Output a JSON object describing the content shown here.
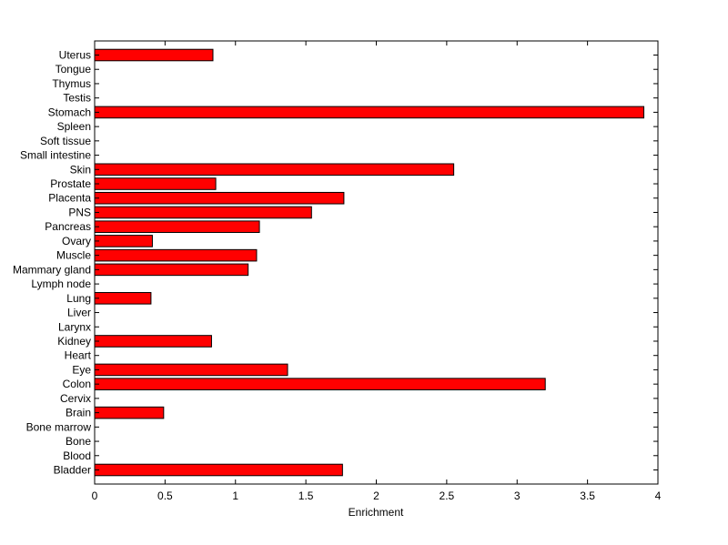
{
  "chart_data": {
    "type": "bar",
    "orientation": "horizontal",
    "title": "",
    "xlabel": "Enrichment",
    "ylabel": "",
    "xlim": [
      0,
      4
    ],
    "xticks": [
      0,
      0.5,
      1,
      1.5,
      2,
      2.5,
      3,
      3.5,
      4
    ],
    "xtick_labels": [
      "0",
      "0.5",
      "1",
      "1.5",
      "2",
      "2.5",
      "3",
      "3.5",
      "4"
    ],
    "grid": false,
    "bar_color": "#ff0000",
    "categories": [
      "Bladder",
      "Blood",
      "Bone",
      "Bone marrow",
      "Brain",
      "Cervix",
      "Colon",
      "Eye",
      "Heart",
      "Kidney",
      "Larynx",
      "Liver",
      "Lung",
      "Lymph node",
      "Mammary gland",
      "Muscle",
      "Ovary",
      "Pancreas",
      "PNS",
      "Placenta",
      "Prostate",
      "Skin",
      "Small intestine",
      "Soft tissue",
      "Spleen",
      "Stomach",
      "Testis",
      "Thymus",
      "Tongue",
      "Uterus"
    ],
    "values": [
      1.76,
      0,
      0,
      0,
      0.49,
      0,
      3.2,
      1.37,
      0,
      0.83,
      0,
      0,
      0.4,
      0,
      1.09,
      1.15,
      0.41,
      1.17,
      1.54,
      1.77,
      0.86,
      2.55,
      0,
      0,
      0,
      3.9,
      0,
      0,
      0,
      0.84
    ]
  }
}
